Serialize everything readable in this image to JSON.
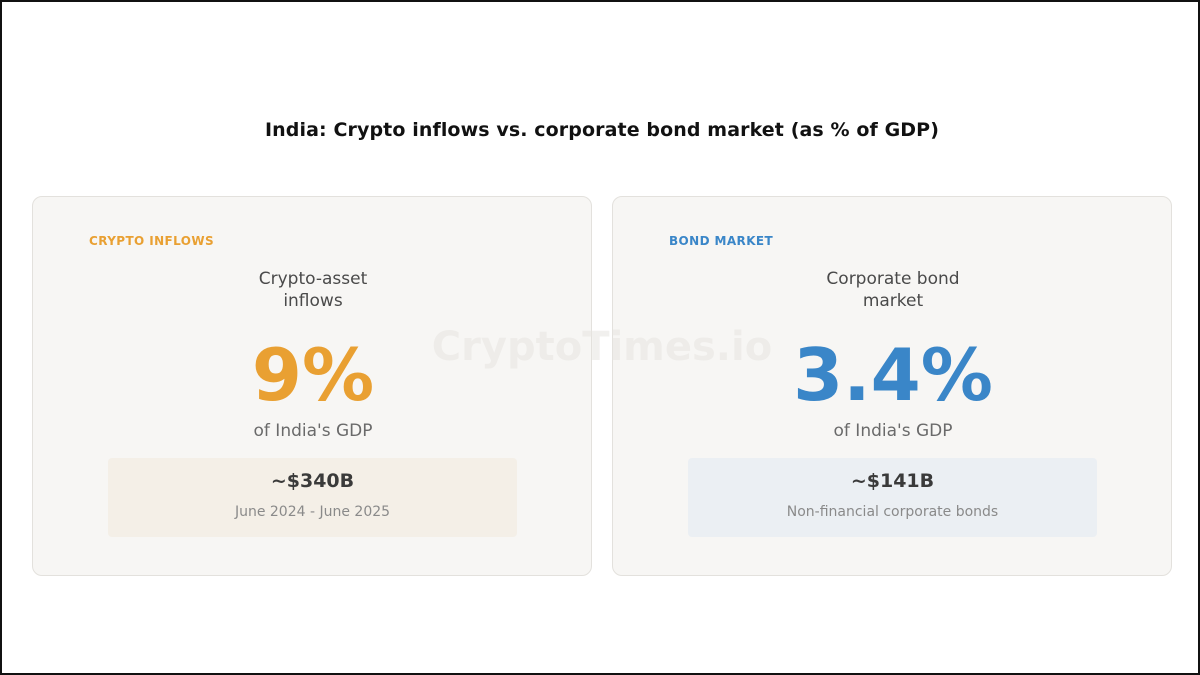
{
  "chart_data": {
    "type": "table",
    "title": "India: Crypto inflows vs. corporate bond market (as % of GDP)",
    "unit": "% of GDP",
    "series": [
      {
        "tag": "CRYPTO INFLOWS",
        "name": "Crypto-asset inflows",
        "value": 9,
        "value_label": "9%",
        "gdp_label": "of India's GDP",
        "amount": "~$340B",
        "note": "June 2024 - June 2025",
        "color": "#E9A032",
        "box_color": "#F4EFE7"
      },
      {
        "tag": "BOND MARKET",
        "name": "Corporate bond market",
        "value": 3.4,
        "value_label": "3.4%",
        "gdp_label": "of India's GDP",
        "amount": "~$141B",
        "note": "Non-financial corporate bonds",
        "color": "#3A86C8",
        "box_color": "#EBEFF3"
      }
    ]
  },
  "watermark": "CryptoTimes.io",
  "subtitle_lines": {
    "left": [
      "Crypto-asset",
      "inflows"
    ],
    "right": [
      "Corporate bond",
      "market"
    ]
  }
}
